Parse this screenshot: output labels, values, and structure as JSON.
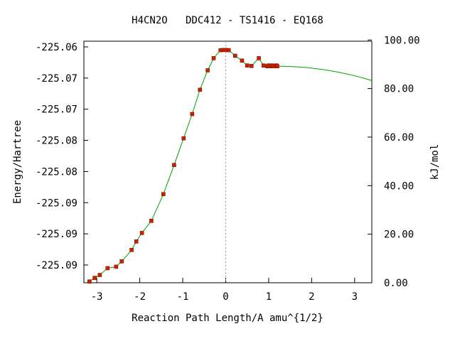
{
  "chart_data": {
    "type": "line",
    "title": "H4CN2O   DDC412 - TS1416 - EQ168",
    "xlabel": "Reaction Path Length/A amu^{1/2}",
    "ylabel": "Energy/Hartree",
    "y2label": "kJ/mol",
    "xlim": [
      -3.3,
      3.4
    ],
    "ylim_kj": [
      0,
      99.5
    ],
    "x_ticks": [
      "-3",
      "-2",
      "-1",
      "0",
      "1",
      "2",
      "3"
    ],
    "y_ticks_left": [
      "-225.06",
      "-225.07",
      "-225.07",
      "-225.08",
      "-225.08",
      "-225.09",
      "-225.09",
      "-225.09"
    ],
    "y_ticks_right": [
      "100.00",
      "80.00",
      "60.00",
      "40.00",
      "20.00",
      "0.00"
    ],
    "ts_marker_x": 0.0,
    "grid": false,
    "colors": {
      "curve": "#00a000",
      "points": "#cc2200",
      "ts_line": "#999999"
    },
    "series": [
      {
        "points_x": [
          -3.17,
          -3.05,
          -2.93,
          -2.75,
          -2.55,
          -2.42,
          -2.19,
          -2.08,
          -1.95,
          -1.73,
          -1.45,
          -1.2,
          -0.98,
          -0.78,
          -0.6,
          -0.42,
          -0.28,
          -0.12,
          -0.05,
          0.0,
          0.07,
          0.22,
          0.38,
          0.5,
          0.6,
          0.77,
          0.88,
          0.97,
          1.0,
          1.05,
          1.08,
          1.12,
          1.18,
          1.2
        ],
        "points_kj": [
          0.5,
          2.0,
          3.2,
          6.0,
          6.6,
          8.8,
          13.5,
          17.0,
          20.5,
          25.5,
          36.5,
          48.5,
          59.5,
          69.5,
          79.5,
          87.5,
          92.5,
          95.8,
          95.9,
          95.9,
          95.8,
          93.5,
          91.5,
          89.5,
          89.3,
          92.5,
          89.5,
          89.2,
          89.5,
          89.2,
          89.5,
          89.2,
          89.5,
          89.2
        ]
      }
    ]
  }
}
